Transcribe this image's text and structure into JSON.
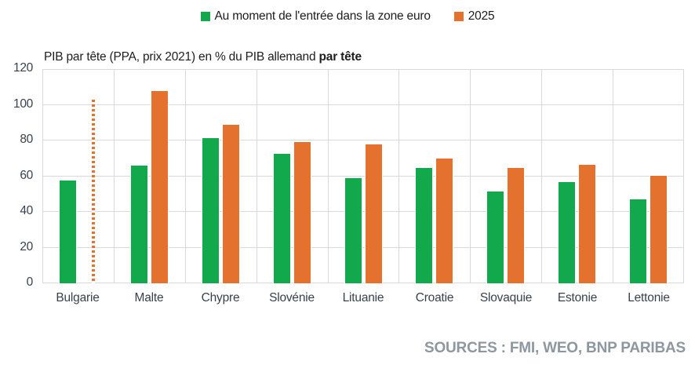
{
  "legend": {
    "series1_label": "Au moment de l'entrée dans la zone euro",
    "series2_label": "2025"
  },
  "title": {
    "normal": "PIB par tête (PPA, prix 2021) en % du PIB allemand ",
    "bold": "par tête"
  },
  "source": "SOURCES : FMI, WEO, BNP PARIBAS",
  "colors": {
    "green": "#12a94d",
    "orange": "#e4712e",
    "grid": "#d9d9d9",
    "axis_text": "#37424c",
    "title_text": "#1d1d1b",
    "source_text": "#8d97a0"
  },
  "chart_data": {
    "type": "bar",
    "title": "PIB par tête (PPA, prix 2021) en % du PIB allemand par tête",
    "categories": [
      "Bulgarie",
      "Malte",
      "Chypre",
      "Slovénie",
      "Lituanie",
      "Croatie",
      "Slovaquie",
      "Estonie",
      "Lettonie"
    ],
    "series": [
      {
        "name": "Au moment de l'entrée dans la zone euro",
        "color_key": "green",
        "values": [
          57.5,
          66,
          81.5,
          72.5,
          59,
          64.5,
          51.5,
          56.5,
          47
        ]
      },
      {
        "name": "2025",
        "color_key": "orange",
        "values": [
          null,
          107.5,
          89,
          79,
          78,
          70,
          64.5,
          66.5,
          60
        ]
      }
    ],
    "annotations": [
      {
        "type": "dotted-vertical-line",
        "category": "Bulgarie",
        "series": "2025",
        "top_value": 103,
        "color_key": "orange"
      }
    ],
    "ylim": [
      0,
      120
    ],
    "yticks": [
      0,
      20,
      40,
      60,
      80,
      100,
      120
    ],
    "xlabel": "",
    "ylabel": "",
    "grid": true,
    "legend_position": "top-center"
  }
}
